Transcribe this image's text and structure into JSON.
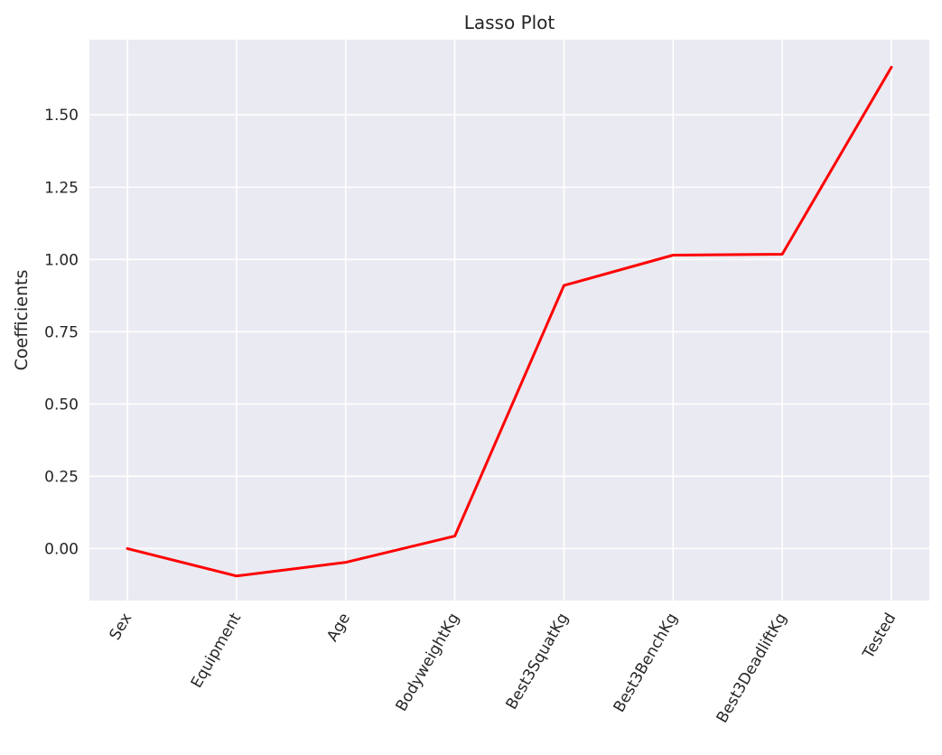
{
  "chart_data": {
    "type": "line",
    "title": "Lasso Plot",
    "xlabel": "",
    "ylabel": "Coefficients",
    "categories": [
      "Sex",
      "Equipment",
      "Age",
      "BodyweightKg",
      "Best3SquatKg",
      "Best3BenchKg",
      "Best3DeadliftKg",
      "Tested"
    ],
    "series": [
      {
        "values": [
          0.0,
          -0.095,
          -0.048,
          0.043,
          0.91,
          1.015,
          1.018,
          1.665
        ],
        "color": "#ff0000"
      }
    ],
    "ylim": [
      -0.18,
      1.76
    ],
    "yticks": [
      0.0,
      0.25,
      0.5,
      0.75,
      1.0,
      1.25,
      1.5
    ],
    "ytick_labels": [
      "0.00",
      "0.25",
      "0.50",
      "0.75",
      "1.00",
      "1.25",
      "1.50"
    ],
    "grid": true,
    "background": "#eaeaf2",
    "xtick_rotation": -60
  }
}
